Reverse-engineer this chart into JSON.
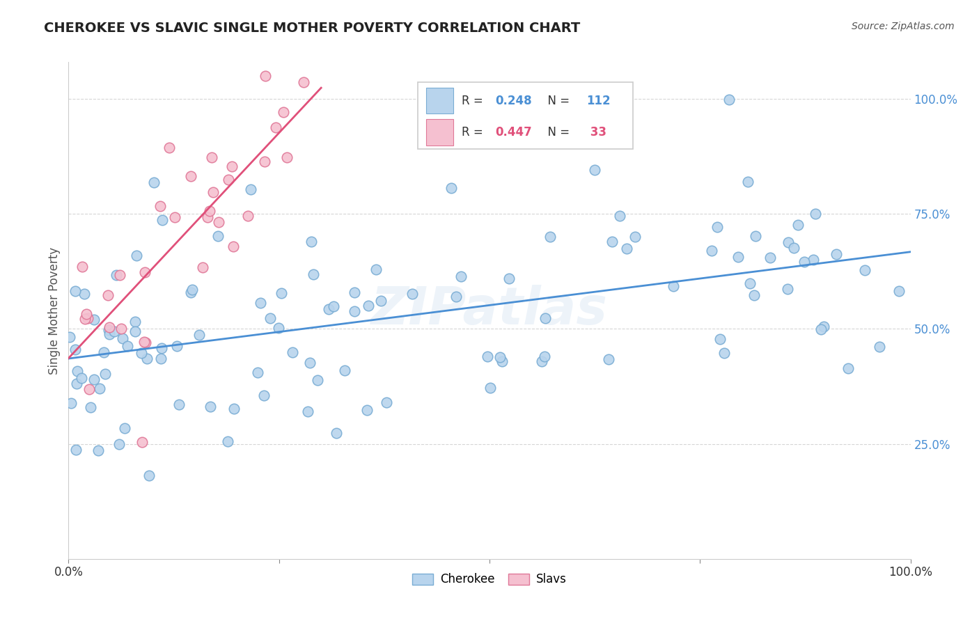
{
  "title": "CHEROKEE VS SLAVIC SINGLE MOTHER POVERTY CORRELATION CHART",
  "source": "Source: ZipAtlas.com",
  "ylabel": "Single Mother Poverty",
  "watermark": "ZIPatlas",
  "cherokee_color": "#b8d4ed",
  "cherokee_edge": "#7aadd4",
  "slavic_color": "#f5c0d0",
  "slavic_edge": "#e07898",
  "trend_cherokee": "#4a8fd4",
  "trend_slavic": "#e0507a",
  "cherokee_label": "Cherokee",
  "slavic_label": "Slavs",
  "r_cherokee": "0.248",
  "n_cherokee": "112",
  "r_slavic": "0.447",
  "n_slavic": " 33",
  "yticklabels": [
    "100.0%",
    "75.0%",
    "50.0%",
    "25.0%"
  ],
  "xticklabels": [
    "0.0%",
    "",
    "",
    "",
    "100.0%"
  ],
  "grid_color": "#cccccc",
  "title_color": "#222222",
  "source_color": "#555555",
  "ytick_color": "#4a8fd4",
  "xtick_color": "#333333"
}
